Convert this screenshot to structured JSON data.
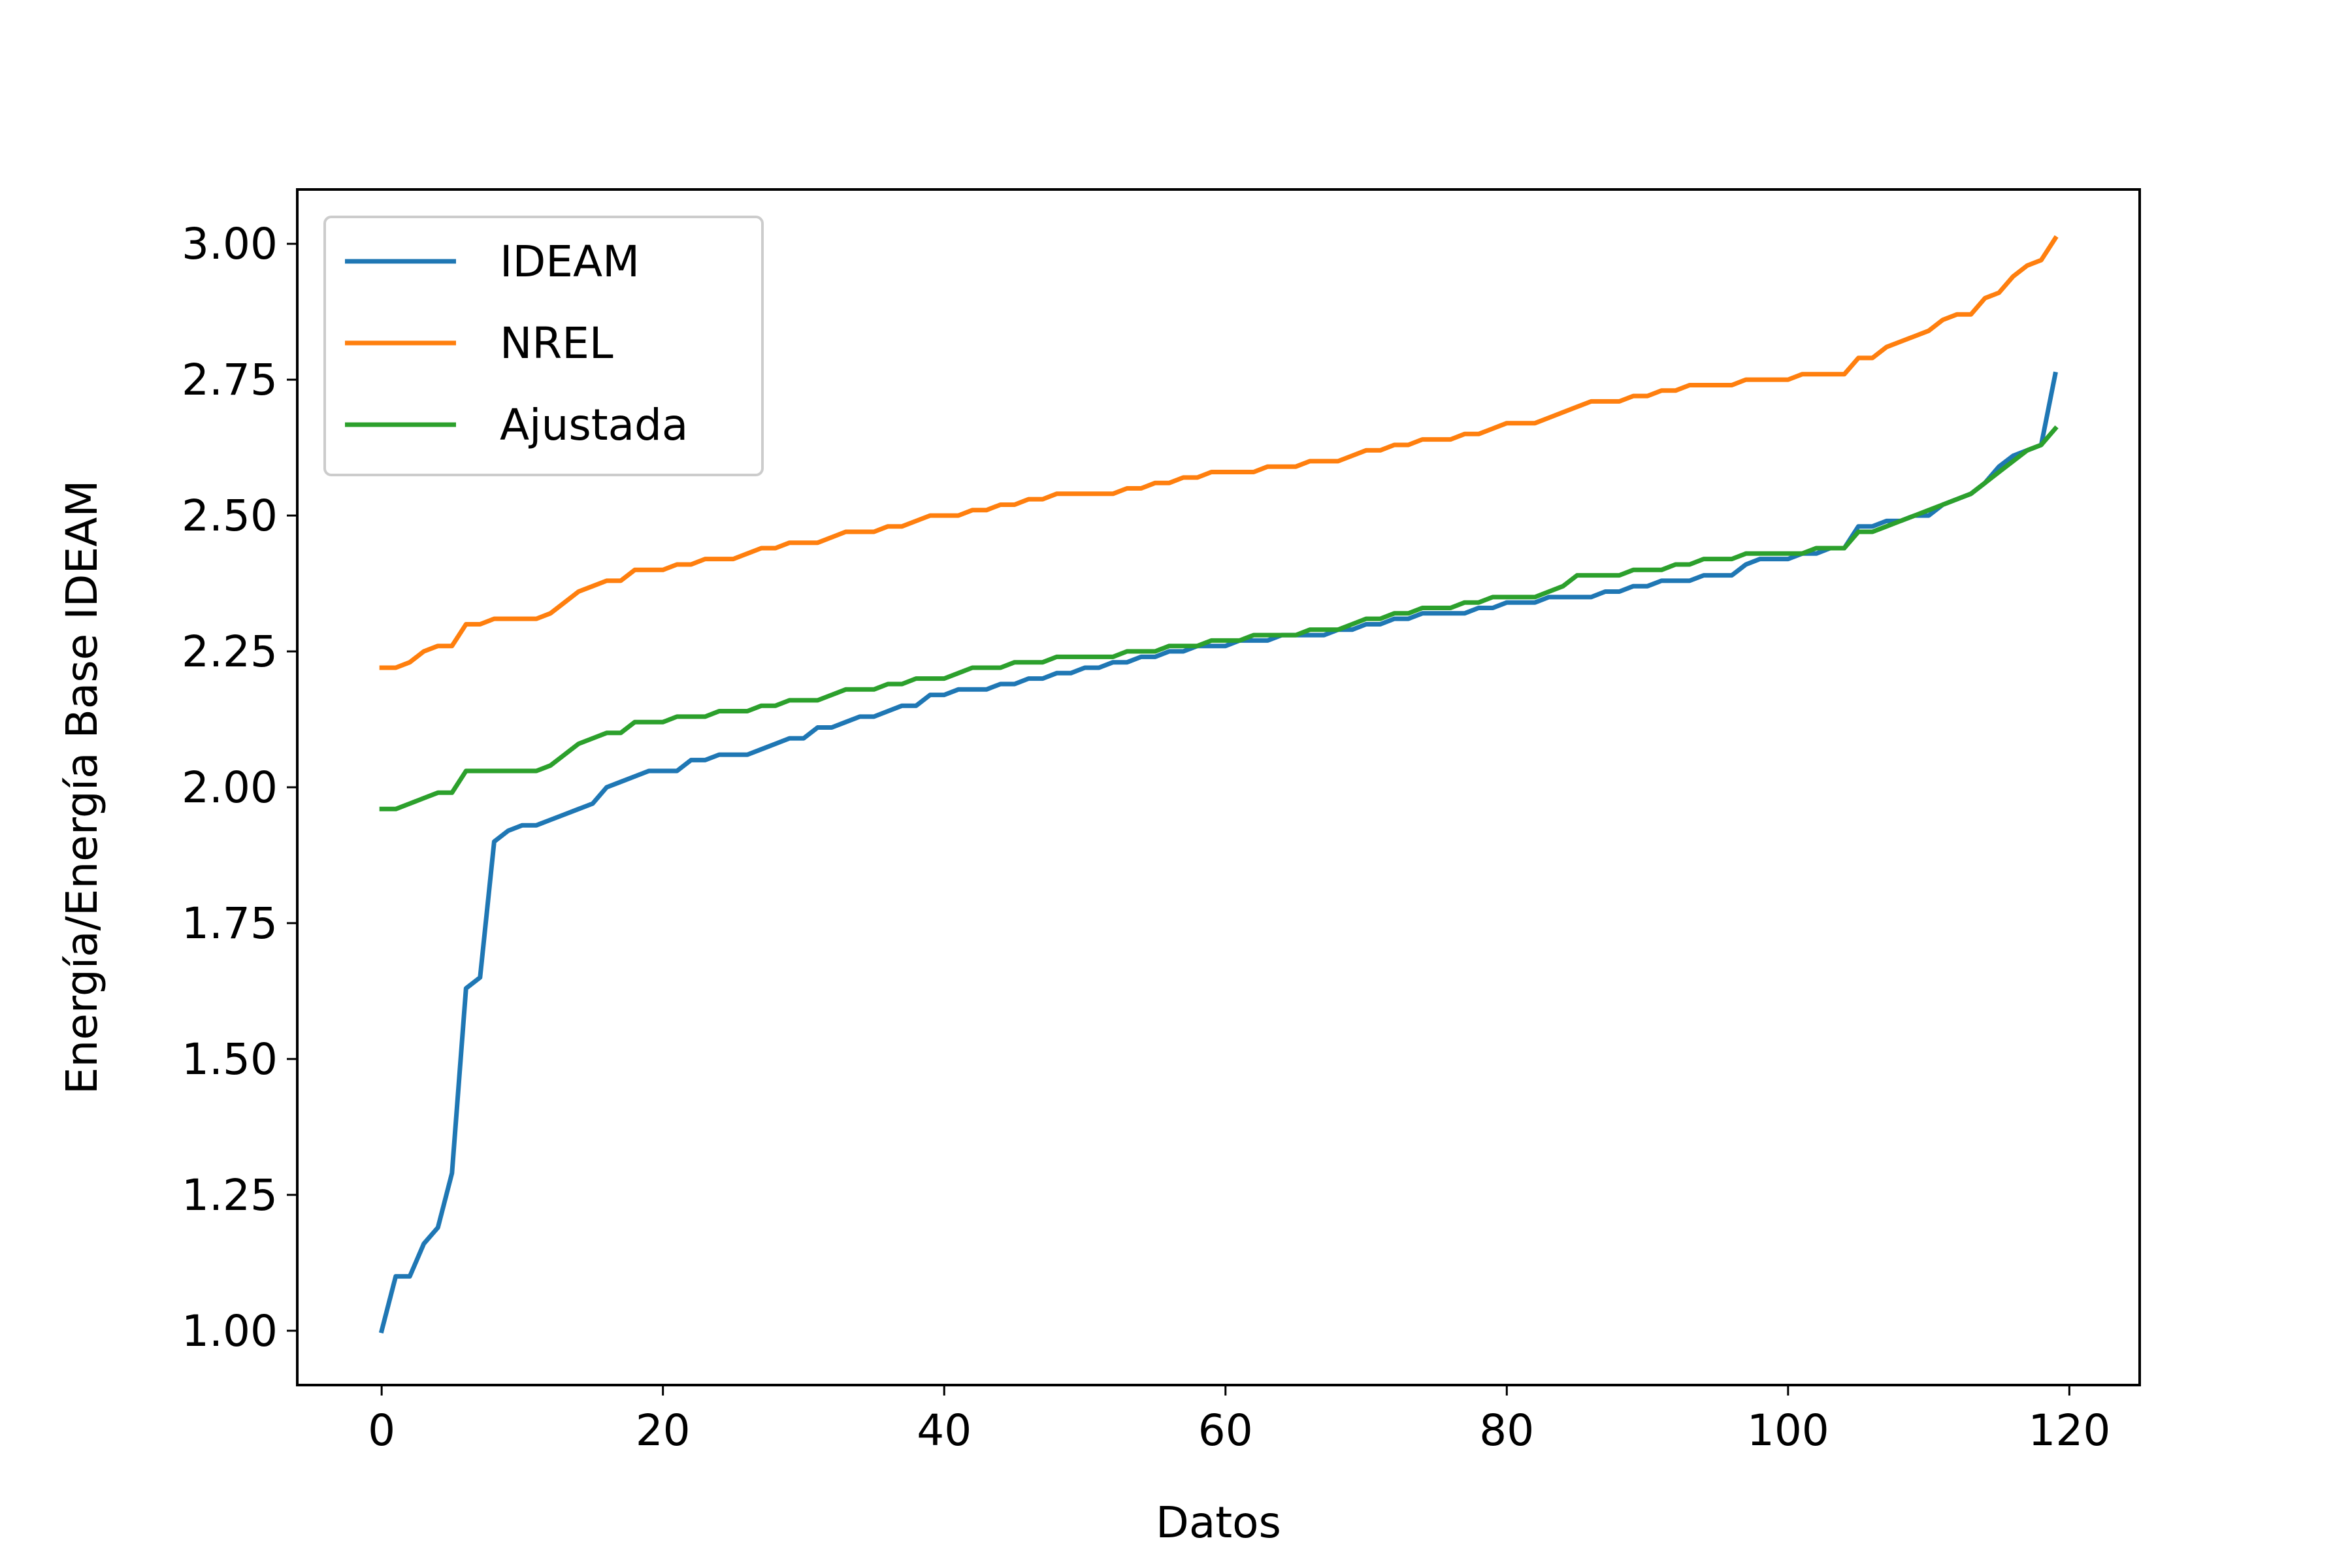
{
  "chart_data": {
    "type": "line",
    "title": "",
    "xlabel": "Datos",
    "ylabel": "Energía/Energía Base IDEAM",
    "xlim": [
      -6,
      125
    ],
    "ylim": [
      0.9,
      3.1
    ],
    "xticks": [
      0,
      20,
      40,
      60,
      80,
      100,
      120
    ],
    "xtick_labels": [
      "0",
      "20",
      "40",
      "60",
      "80",
      "100",
      "120"
    ],
    "yticks": [
      1.0,
      1.25,
      1.5,
      1.75,
      2.0,
      2.25,
      2.5,
      2.75,
      3.0
    ],
    "ytick_labels": [
      "1.00",
      "1.25",
      "1.50",
      "1.75",
      "2.00",
      "2.25",
      "2.50",
      "2.75",
      "3.00"
    ],
    "grid": false,
    "legend_position": "top-left",
    "series": [
      {
        "name": "IDEAM",
        "color": "#1f77b4",
        "values": [
          1.0,
          1.1,
          1.1,
          1.16,
          1.19,
          1.29,
          1.63,
          1.65,
          1.9,
          1.92,
          1.93,
          1.93,
          1.94,
          1.95,
          1.96,
          1.97,
          2.0,
          2.01,
          2.02,
          2.03,
          2.03,
          2.03,
          2.05,
          2.05,
          2.06,
          2.06,
          2.06,
          2.07,
          2.08,
          2.09,
          2.09,
          2.11,
          2.11,
          2.12,
          2.13,
          2.13,
          2.14,
          2.15,
          2.15,
          2.17,
          2.17,
          2.18,
          2.18,
          2.18,
          2.19,
          2.19,
          2.2,
          2.2,
          2.21,
          2.21,
          2.22,
          2.22,
          2.23,
          2.23,
          2.24,
          2.24,
          2.25,
          2.25,
          2.26,
          2.26,
          2.26,
          2.27,
          2.27,
          2.27,
          2.28,
          2.28,
          2.28,
          2.28,
          2.29,
          2.29,
          2.3,
          2.3,
          2.31,
          2.31,
          2.32,
          2.32,
          2.32,
          2.32,
          2.33,
          2.33,
          2.34,
          2.34,
          2.34,
          2.35,
          2.35,
          2.35,
          2.35,
          2.36,
          2.36,
          2.37,
          2.37,
          2.38,
          2.38,
          2.38,
          2.39,
          2.39,
          2.39,
          2.41,
          2.42,
          2.42,
          2.42,
          2.43,
          2.43,
          2.44,
          2.44,
          2.48,
          2.48,
          2.49,
          2.49,
          2.5,
          2.5,
          2.52,
          2.53,
          2.54,
          2.56,
          2.59,
          2.61,
          2.62,
          2.63,
          2.76
        ]
      },
      {
        "name": "NREL",
        "color": "#ff7f0e",
        "values": [
          2.22,
          2.22,
          2.23,
          2.25,
          2.26,
          2.26,
          2.3,
          2.3,
          2.31,
          2.31,
          2.31,
          2.31,
          2.32,
          2.34,
          2.36,
          2.37,
          2.38,
          2.38,
          2.4,
          2.4,
          2.4,
          2.41,
          2.41,
          2.42,
          2.42,
          2.42,
          2.43,
          2.44,
          2.44,
          2.45,
          2.45,
          2.45,
          2.46,
          2.47,
          2.47,
          2.47,
          2.48,
          2.48,
          2.49,
          2.5,
          2.5,
          2.5,
          2.51,
          2.51,
          2.52,
          2.52,
          2.53,
          2.53,
          2.54,
          2.54,
          2.54,
          2.54,
          2.54,
          2.55,
          2.55,
          2.56,
          2.56,
          2.57,
          2.57,
          2.58,
          2.58,
          2.58,
          2.58,
          2.59,
          2.59,
          2.59,
          2.6,
          2.6,
          2.6,
          2.61,
          2.62,
          2.62,
          2.63,
          2.63,
          2.64,
          2.64,
          2.64,
          2.65,
          2.65,
          2.66,
          2.67,
          2.67,
          2.67,
          2.68,
          2.69,
          2.7,
          2.71,
          2.71,
          2.71,
          2.72,
          2.72,
          2.73,
          2.73,
          2.74,
          2.74,
          2.74,
          2.74,
          2.75,
          2.75,
          2.75,
          2.75,
          2.76,
          2.76,
          2.76,
          2.76,
          2.79,
          2.79,
          2.81,
          2.82,
          2.83,
          2.84,
          2.86,
          2.87,
          2.87,
          2.9,
          2.91,
          2.94,
          2.96,
          2.97,
          3.01
        ]
      },
      {
        "name": "Ajustada",
        "color": "#2ca02c",
        "values": [
          1.96,
          1.96,
          1.97,
          1.98,
          1.99,
          1.99,
          2.03,
          2.03,
          2.03,
          2.03,
          2.03,
          2.03,
          2.04,
          2.06,
          2.08,
          2.09,
          2.1,
          2.1,
          2.12,
          2.12,
          2.12,
          2.13,
          2.13,
          2.13,
          2.14,
          2.14,
          2.14,
          2.15,
          2.15,
          2.16,
          2.16,
          2.16,
          2.17,
          2.18,
          2.18,
          2.18,
          2.19,
          2.19,
          2.2,
          2.2,
          2.2,
          2.21,
          2.22,
          2.22,
          2.22,
          2.23,
          2.23,
          2.23,
          2.24,
          2.24,
          2.24,
          2.24,
          2.24,
          2.25,
          2.25,
          2.25,
          2.26,
          2.26,
          2.26,
          2.27,
          2.27,
          2.27,
          2.28,
          2.28,
          2.28,
          2.28,
          2.29,
          2.29,
          2.29,
          2.3,
          2.31,
          2.31,
          2.32,
          2.32,
          2.33,
          2.33,
          2.33,
          2.34,
          2.34,
          2.35,
          2.35,
          2.35,
          2.35,
          2.36,
          2.37,
          2.39,
          2.39,
          2.39,
          2.39,
          2.4,
          2.4,
          2.4,
          2.41,
          2.41,
          2.42,
          2.42,
          2.42,
          2.43,
          2.43,
          2.43,
          2.43,
          2.43,
          2.44,
          2.44,
          2.44,
          2.47,
          2.47,
          2.48,
          2.49,
          2.5,
          2.51,
          2.52,
          2.53,
          2.54,
          2.56,
          2.58,
          2.6,
          2.62,
          2.63,
          2.66
        ]
      }
    ]
  }
}
